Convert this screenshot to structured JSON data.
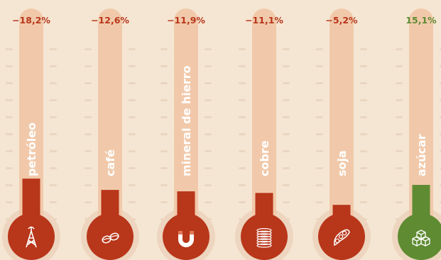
{
  "chart_data": {
    "type": "bar",
    "categories": [
      "petróleo",
      "café",
      "mineral de hierro",
      "cobre",
      "soja",
      "azúcar"
    ],
    "values": [
      -18.2,
      -12.6,
      -11.9,
      -11.1,
      -5.2,
      15.1
    ],
    "value_labels": [
      "−18,2%",
      "−12,6%",
      "−11,9%",
      "−11,1%",
      "−5,2%",
      "15,1%"
    ],
    "icons": [
      "oil-derrick-icon",
      "coffee-beans-icon",
      "magnet-icon",
      "copper-coil-icon",
      "soybean-pod-icon",
      "sugar-cubes-icon"
    ],
    "colors": {
      "negative": "#b8361a",
      "positive": "#5f8b32",
      "tube": "#f1c9aa",
      "background": "#f5e6d3"
    }
  }
}
